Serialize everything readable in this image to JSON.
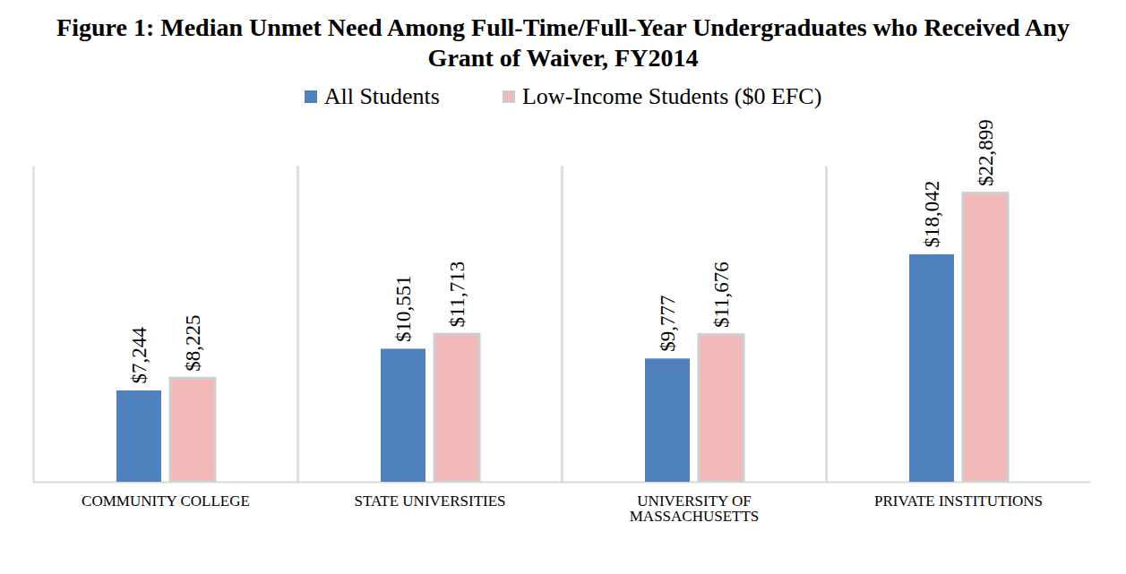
{
  "chart_data": {
    "type": "bar",
    "title": "Figure 1: Median Unmet Need Among Full-Time/Full-Year Undergraduates who Received Any Grant of Waiver, FY2014",
    "categories": [
      "COMMUNITY COLLEGE",
      "STATE UNIVERSITIES",
      "UNIVERSITY OF MASSACHUSETTS",
      "PRIVATE INSTITUTIONS"
    ],
    "series": [
      {
        "name": "All Students",
        "color": "#4f81bd",
        "values": [
          7244,
          10551,
          9777,
          18042
        ],
        "value_labels": [
          "$7,244",
          "$10,551",
          "$9,777",
          "$18,042"
        ]
      },
      {
        "name": "Low-Income Students ($0 EFC)",
        "color": "#f2b9b9",
        "values": [
          8225,
          11713,
          11676,
          22899
        ],
        "value_labels": [
          "$8,225",
          "$11,713",
          "$11,676",
          "$22,899"
        ]
      }
    ],
    "ylim": [
      0,
      25000
    ],
    "tick_labels": "x",
    "data_labels": true,
    "legend": "top",
    "grid": false
  }
}
